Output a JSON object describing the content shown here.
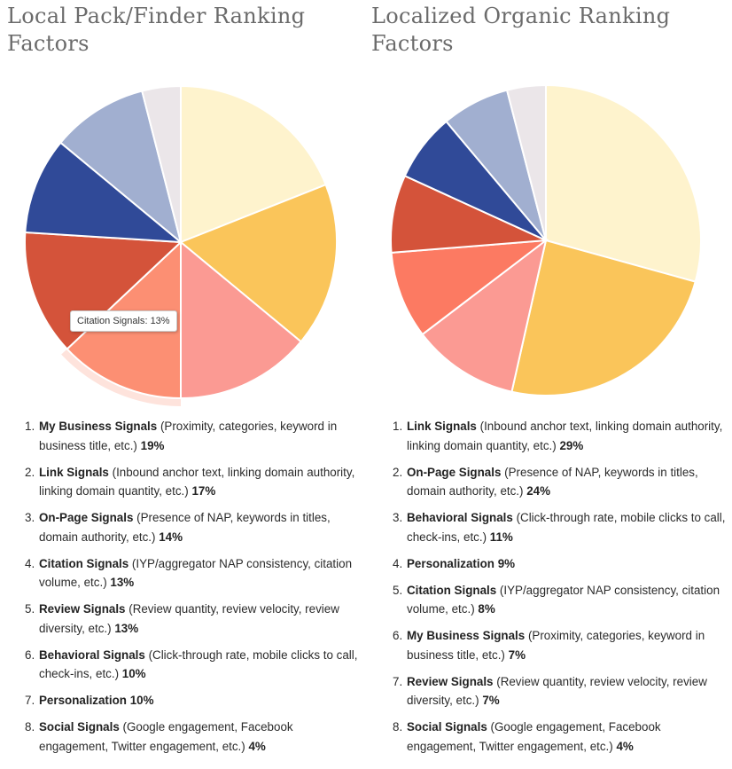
{
  "chart_data": [
    {
      "type": "pie",
      "title": "Local Pack/Finder Ranking Factors",
      "categories": [
        "My Business Signals",
        "Link Signals",
        "On-Page Signals",
        "Citation Signals",
        "Review Signals",
        "Behavioral Signals",
        "Personalization",
        "Social Signals"
      ],
      "values": [
        19,
        17,
        14,
        13,
        13,
        10,
        10,
        4
      ],
      "colors": [
        "#fef3cd",
        "#fac55a",
        "#fb9a93",
        "#fc8f73",
        "#d4533a",
        "#304a98",
        "#a1afd0",
        "#ebe6e9"
      ],
      "highlighted": "Citation Signals",
      "tooltip": {
        "label": "Citation Signals",
        "value": "13%"
      },
      "legend": [
        {
          "num": "1.",
          "name": "My Business Signals",
          "desc": "(Proximity, categories, keyword in business title, etc.)",
          "pct": "19%"
        },
        {
          "num": "2.",
          "name": "Link Signals",
          "desc": "(Inbound anchor text, linking domain authority, linking domain quantity, etc.)",
          "pct": "17%"
        },
        {
          "num": "3.",
          "name": "On-Page Signals",
          "desc": "(Presence of NAP, keywords in titles, domain authority, etc.)",
          "pct": "14%"
        },
        {
          "num": "4.",
          "name": "Citation Signals",
          "desc": "(IYP/aggregator NAP consistency, citation volume, etc.)",
          "pct": "13%"
        },
        {
          "num": "5.",
          "name": "Review Signals",
          "desc": "(Review quantity, review velocity, review diversity, etc.)",
          "pct": "13%"
        },
        {
          "num": "6.",
          "name": "Behavioral Signals",
          "desc": "(Click-through rate, mobile clicks to call, check-ins, etc.)",
          "pct": "10%"
        },
        {
          "num": "7.",
          "name": "Personalization",
          "desc": "",
          "pct": "10%"
        },
        {
          "num": "8.",
          "name": "Social Signals",
          "desc": "(Google engagement, Facebook engagement, Twitter engagement, etc.)",
          "pct": "4%"
        }
      ]
    },
    {
      "type": "pie",
      "title": "Localized Organic Ranking Factors",
      "categories": [
        "Link Signals",
        "On-Page Signals",
        "Behavioral Signals",
        "Personalization",
        "Citation Signals",
        "My Business Signals",
        "Review Signals",
        "Social Signals"
      ],
      "values": [
        29,
        24,
        11,
        9,
        8,
        7,
        7,
        4
      ],
      "colors": [
        "#fef3cd",
        "#fac55a",
        "#fb9a93",
        "#fc7a62",
        "#d4533a",
        "#304a98",
        "#a1afd0",
        "#ebe6e9"
      ],
      "highlighted": "",
      "legend": [
        {
          "num": "1.",
          "name": "Link Signals",
          "desc": "(Inbound anchor text, linking domain authority, linking domain quantity, etc.)",
          "pct": "29%"
        },
        {
          "num": "2.",
          "name": "On-Page Signals",
          "desc": "(Presence of NAP, keywords in titles, domain authority, etc.)",
          "pct": "24%"
        },
        {
          "num": "3.",
          "name": "Behavioral Signals",
          "desc": "(Click-through rate, mobile clicks to call, check-ins, etc.)",
          "pct": "11%"
        },
        {
          "num": "4.",
          "name": "Personalization",
          "desc": "",
          "pct": "9%"
        },
        {
          "num": "5.",
          "name": "Citation Signals",
          "desc": "(IYP/aggregator NAP consistency, citation volume, etc.)",
          "pct": "8%"
        },
        {
          "num": "6.",
          "name": "My Business Signals",
          "desc": "(Proximity, categories, keyword in business title, etc.)",
          "pct": "7%"
        },
        {
          "num": "7.",
          "name": "Review Signals",
          "desc": "(Review quantity, review velocity, review diversity, etc.)",
          "pct": "7%"
        },
        {
          "num": "8.",
          "name": "Social Signals",
          "desc": "(Google engagement, Facebook engagement, Twitter engagement, etc.)",
          "pct": "4%"
        }
      ]
    }
  ]
}
